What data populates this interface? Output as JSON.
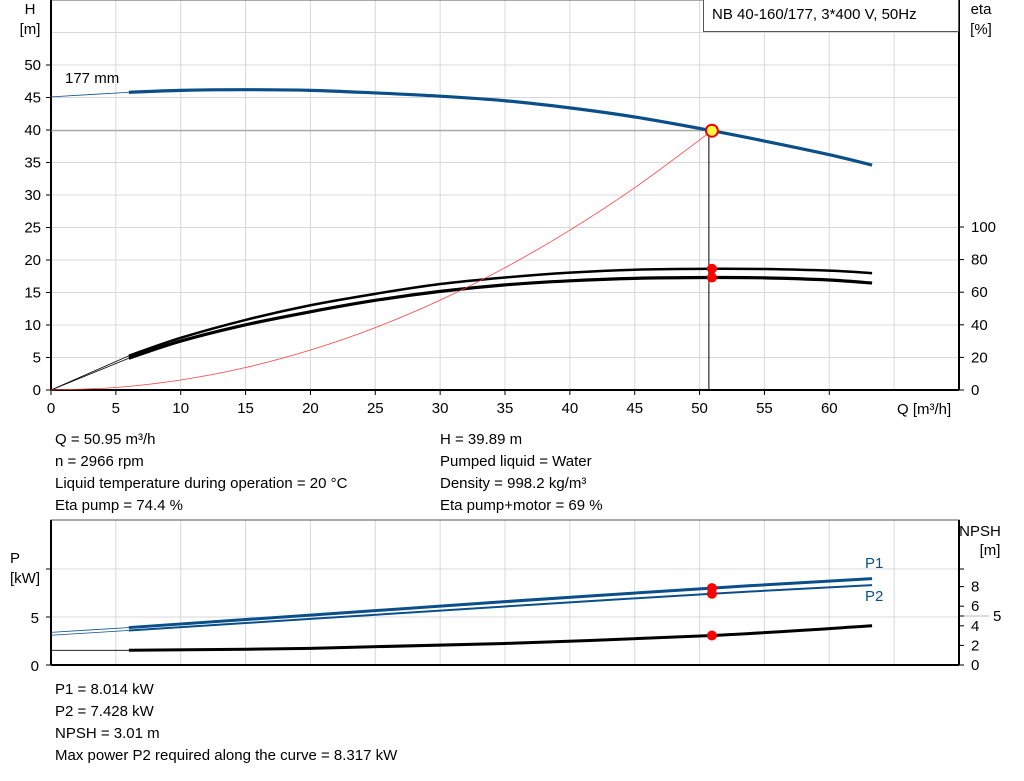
{
  "title": "NB 40-160/177, 3*400 V, 50Hz",
  "chart_data": [
    {
      "type": "line",
      "title": "NB 40-160/177, 3*400 V, 50Hz",
      "xlabel": "Q [m³/h]",
      "ylabel_left": [
        "H",
        "[m]"
      ],
      "ylabel_right": [
        "eta",
        "[%]"
      ],
      "xlim": [
        0,
        70
      ],
      "ylim_left": [
        0,
        60
      ],
      "ylim_right": [
        0,
        100
      ],
      "x_ticks": [
        0,
        5,
        10,
        15,
        20,
        25,
        30,
        35,
        40,
        45,
        50,
        55,
        60
      ],
      "y_ticks_left": [
        0,
        5,
        10,
        15,
        20,
        25,
        30,
        35,
        40,
        45,
        50
      ],
      "y_ticks_right": [
        0,
        20,
        40,
        60,
        80,
        100
      ],
      "grid": true,
      "curve_label": "177 mm",
      "series": [
        {
          "key": "H",
          "axis": "left",
          "color": "#0b4f8a",
          "x": [
            0,
            6,
            10,
            15,
            20,
            25,
            30,
            35,
            40,
            45,
            50.95,
            55,
            60,
            63.3
          ],
          "y": [
            45.1,
            45.8,
            46.1,
            46.2,
            46.1,
            45.7,
            45.2,
            44.5,
            43.4,
            42.0,
            39.89,
            38.3,
            36.2,
            34.6
          ]
        },
        {
          "key": "eta_pump",
          "axis": "right",
          "color": "#000000",
          "x": [
            0,
            6,
            10,
            15,
            20,
            25,
            30,
            35,
            40,
            45,
            50.95,
            55,
            60,
            63.3
          ],
          "y": [
            0,
            21,
            32,
            43,
            52,
            59,
            65,
            69,
            72,
            73.8,
            74.4,
            74.2,
            73.2,
            71.7
          ]
        },
        {
          "key": "eta_pump_motor",
          "axis": "right",
          "color": "#000000",
          "x": [
            0,
            6,
            10,
            15,
            20,
            25,
            30,
            35,
            40,
            45,
            50.95,
            55,
            60,
            63.3
          ],
          "y": [
            0,
            19.5,
            30,
            40,
            48,
            55,
            60.5,
            64.5,
            67,
            68.5,
            69,
            68.8,
            67.5,
            65.6
          ]
        },
        {
          "key": "system",
          "axis": "left",
          "color": "#ff4040",
          "x": [
            0,
            5,
            10,
            15,
            20,
            25,
            30,
            35,
            40,
            45,
            50.95
          ],
          "y": [
            0,
            0.38,
            1.54,
            3.46,
            6.15,
            9.6,
            13.83,
            18.82,
            24.59,
            31.12,
            39.89
          ]
        }
      ],
      "operating_point": {
        "Q": 50.95,
        "H": 39.89,
        "eta_pump": 74.4,
        "eta_pump_motor": 69
      }
    },
    {
      "type": "line",
      "ylabel_left": [
        "P",
        "[kW]"
      ],
      "ylabel_right": [
        "NPSH",
        "[m]"
      ],
      "xlim": [
        0,
        70
      ],
      "ylim_left": [
        0,
        15
      ],
      "ylim_right": [
        0,
        14.8
      ],
      "y_ticks_left": [
        0,
        5
      ],
      "y_ticks_right": [
        0,
        2,
        4,
        5,
        6,
        8
      ],
      "grid": true,
      "series": [
        {
          "name": "P1",
          "axis": "left",
          "color": "#0b4f8a",
          "x": [
            0,
            6,
            20,
            35,
            50.95,
            63.3
          ],
          "y": [
            3.4,
            3.9,
            5.2,
            6.6,
            8.014,
            9.0
          ]
        },
        {
          "name": "P2",
          "axis": "left",
          "color": "#0b4f8a",
          "x": [
            0,
            6,
            20,
            35,
            50.95,
            63.3
          ],
          "y": [
            3.1,
            3.6,
            4.8,
            6.1,
            7.428,
            8.317
          ]
        },
        {
          "key": "NPSH",
          "axis": "right",
          "color": "#000000",
          "x": [
            0,
            6,
            20,
            35,
            50.95,
            63.3
          ],
          "y": [
            1.5,
            1.5,
            1.7,
            2.2,
            3.01,
            4.0
          ]
        }
      ]
    }
  ],
  "info": {
    "left": [
      "Q = 50.95 m³/h",
      "n = 2966 rpm",
      "Liquid temperature during operation = 20 °C",
      "Eta pump = 74.4 %"
    ],
    "right": [
      "H = 39.89 m",
      "Pumped liquid = Water",
      "Density = 998.2 kg/m³",
      "Eta pump+motor = 69 %"
    ],
    "bottom": [
      "P1 = 8.014 kW",
      "P2 = 7.428 kW",
      "NPSH = 3.01 m",
      "Max power P2 required along the curve = 8.317 kW"
    ]
  }
}
